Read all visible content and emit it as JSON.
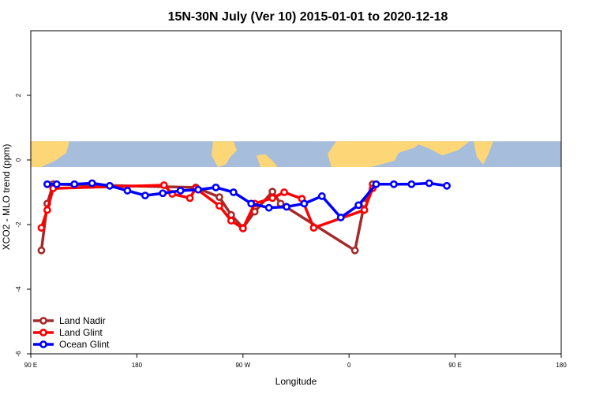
{
  "chart_data": {
    "type": "line",
    "title": "15N-30N July (Ver 10)   2015-01-01 to 2020-12-18",
    "xlabel": "Longitude",
    "ylabel": "XCO2 - MLO trend (ppm)",
    "xlim": [
      -180,
      270
    ],
    "ylim": [
      -6,
      4
    ],
    "x_ticks": [
      {
        "value": -180,
        "label": "90 E"
      },
      {
        "value": -90,
        "label": "180"
      },
      {
        "value": 0,
        "label": "90 W"
      },
      {
        "value": 90,
        "label": "0"
      },
      {
        "value": 180,
        "label": "90 E"
      },
      {
        "value": 270,
        "label": "180"
      }
    ],
    "y_ticks": [
      {
        "value": -6,
        "label": "-6"
      },
      {
        "value": -4,
        "label": "-4"
      },
      {
        "value": -2,
        "label": "-2"
      },
      {
        "value": 0,
        "label": "0"
      },
      {
        "value": 2,
        "label": "2"
      }
    ],
    "map_band": {
      "y_range": [
        -0.22,
        0.58
      ],
      "ocean_color": "#a6bddb",
      "land_color": "#fdd777"
    },
    "legend_position": "bottom-left",
    "series": [
      {
        "name": "Land Nadir",
        "color": "#a52a2a",
        "points": [
          [
            -171,
            -2.8
          ],
          [
            -166,
            -1.35
          ],
          [
            -161,
            -0.75
          ],
          [
            -40,
            -0.85
          ],
          [
            -20,
            -1.15
          ],
          [
            -10,
            -1.7
          ],
          [
            0,
            -2.1
          ],
          [
            10,
            -1.6
          ],
          [
            25,
            -0.98
          ],
          [
            32,
            -1.35
          ],
          [
            95,
            -2.8
          ],
          [
            103,
            -1.35
          ],
          [
            110,
            -0.75
          ]
        ]
      },
      {
        "name": "Land Glint",
        "color": "#ff0000",
        "points": [
          [
            -171,
            -2.1
          ],
          [
            -166,
            -1.55
          ],
          [
            -161,
            -0.88
          ],
          [
            -67,
            -0.78
          ],
          [
            -60,
            -1.05
          ],
          [
            -45,
            -1.18
          ],
          [
            -40,
            -0.88
          ],
          [
            -20,
            -1.42
          ],
          [
            -10,
            -1.88
          ],
          [
            0,
            -2.12
          ],
          [
            10,
            -1.35
          ],
          [
            25,
            -1.18
          ],
          [
            35,
            -1.0
          ],
          [
            50,
            -1.2
          ],
          [
            60,
            -2.1
          ],
          [
            103,
            -1.55
          ],
          [
            110,
            -0.88
          ]
        ]
      },
      {
        "name": "Ocean Glint",
        "color": "#0000ff",
        "points": [
          [
            -166,
            -0.75
          ],
          [
            -158,
            -0.75
          ],
          [
            -143,
            -0.75
          ],
          [
            -128,
            -0.72
          ],
          [
            -113,
            -0.8
          ],
          [
            -98,
            -0.95
          ],
          [
            -83,
            -1.1
          ],
          [
            -68,
            -1.03
          ],
          [
            -53,
            -0.95
          ],
          [
            -38,
            -0.92
          ],
          [
            -23,
            -0.85
          ],
          [
            -8,
            -1.0
          ],
          [
            7,
            -1.35
          ],
          [
            22,
            -1.48
          ],
          [
            37,
            -1.45
          ],
          [
            52,
            -1.35
          ],
          [
            67,
            -1.12
          ],
          [
            83,
            -1.78
          ],
          [
            98,
            -1.4
          ],
          [
            113,
            -0.75
          ],
          [
            128,
            -0.75
          ],
          [
            143,
            -0.75
          ],
          [
            158,
            -0.72
          ],
          [
            173,
            -0.8
          ]
        ]
      }
    ]
  }
}
